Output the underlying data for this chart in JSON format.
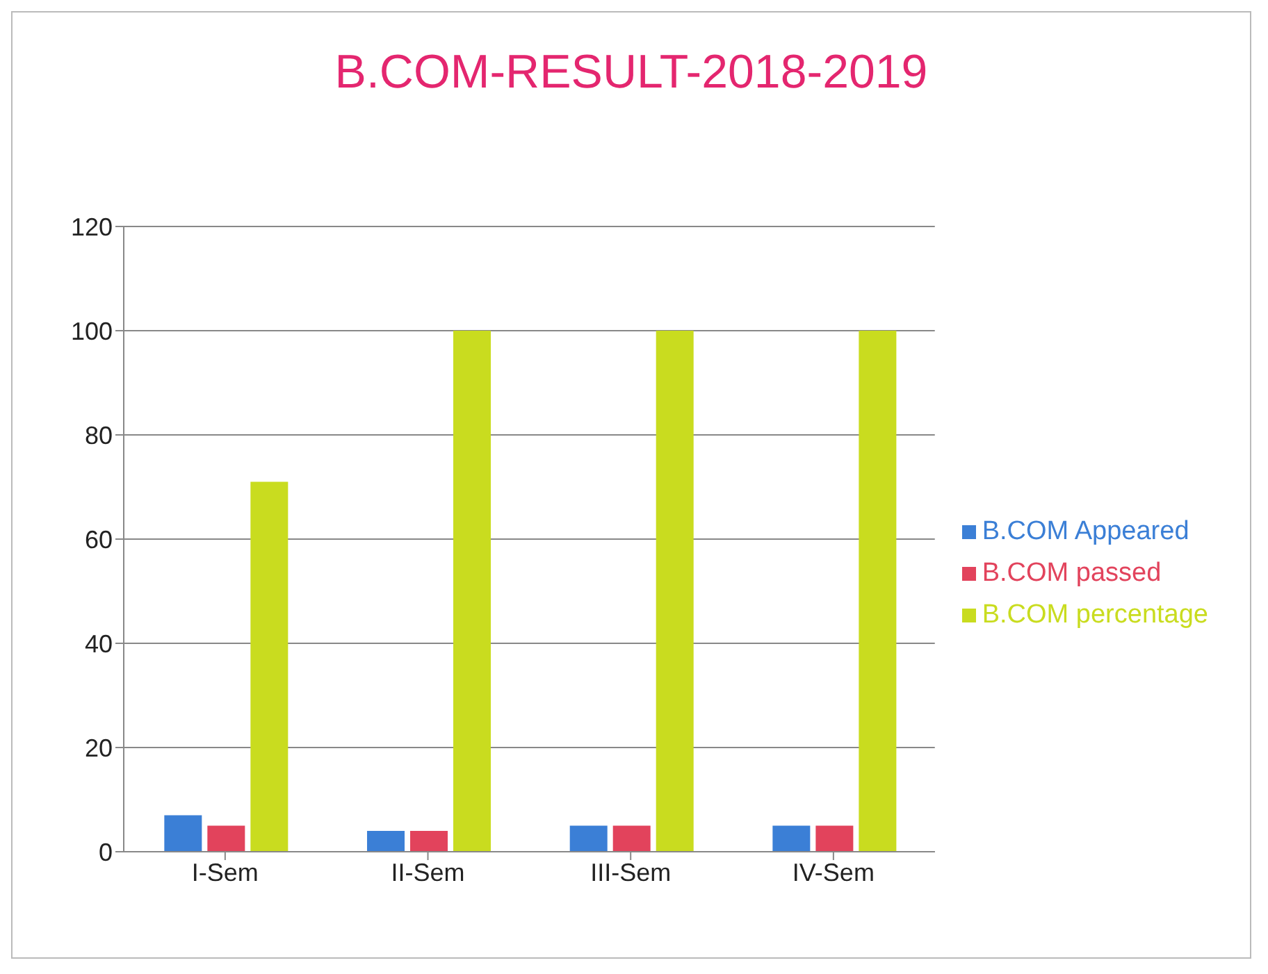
{
  "chart_data": {
    "type": "bar",
    "title": "B.COM-RESULT-2018-2019",
    "categories": [
      "I-Sem",
      "II-Sem",
      "III-Sem",
      "IV-Sem"
    ],
    "series": [
      {
        "name": "B.COM Appeared",
        "color": "#3b7fd6",
        "values": [
          7,
          4,
          5,
          5
        ]
      },
      {
        "name": "B.COM passed",
        "color": "#e2435c",
        "values": [
          5,
          4,
          5,
          5
        ]
      },
      {
        "name": "B.COM percentage",
        "color": "#c9dc1f",
        "values": [
          71,
          100,
          100,
          100
        ]
      }
    ],
    "ylim": [
      0,
      120
    ],
    "yticks": [
      0,
      20,
      40,
      60,
      80,
      100,
      120
    ],
    "grid": "y",
    "legend": "right"
  }
}
